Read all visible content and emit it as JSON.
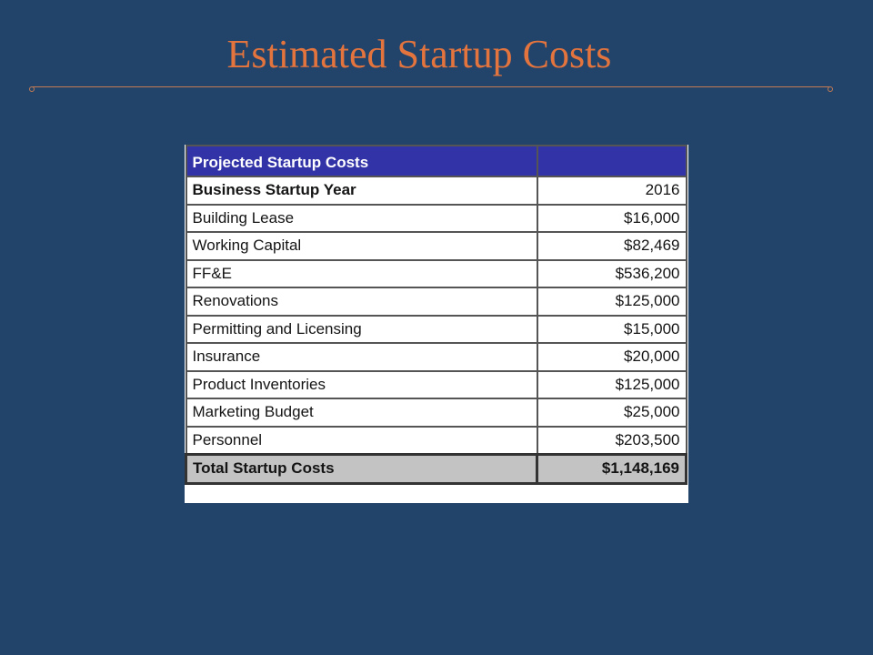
{
  "slide": {
    "title": "Estimated Startup Costs"
  },
  "table": {
    "header": {
      "label": "Projected Startup Costs",
      "value": ""
    },
    "rows": [
      {
        "label": "Business Startup Year",
        "value": "2016"
      },
      {
        "label": "Building Lease",
        "value": "$16,000"
      },
      {
        "label": "Working Capital",
        "value": "$82,469"
      },
      {
        "label": "FF&E",
        "value": "$536,200"
      },
      {
        "label": "Renovations",
        "value": "$125,000"
      },
      {
        "label": "Permitting and Licensing",
        "value": "$15,000"
      },
      {
        "label": "Insurance",
        "value": "$20,000"
      },
      {
        "label": "Product Inventories",
        "value": "$125,000"
      },
      {
        "label": "Marketing Budget",
        "value": "$25,000"
      },
      {
        "label": "Personnel",
        "value": "$203,500"
      }
    ],
    "total": {
      "label": "Total Startup Costs",
      "value": "$1,148,169"
    }
  },
  "colors": {
    "background": "#22446a",
    "title": "#e4743e",
    "header_fill": "#3333a8",
    "total_fill": "#c3c3c3"
  }
}
